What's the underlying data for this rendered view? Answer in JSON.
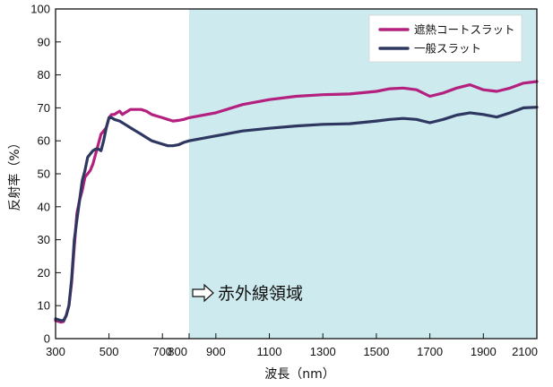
{
  "chart_data": {
    "type": "line",
    "xlabel": "波長（nm）",
    "ylabel": "反射率（%）",
    "ylim": [
      0,
      100
    ],
    "y_ticks": [
      0,
      10,
      20,
      30,
      40,
      50,
      60,
      70,
      80,
      90,
      100
    ],
    "x_ticks_left": [
      300,
      500,
      700,
      800
    ],
    "x_ticks_right": [
      900,
      1100,
      1300,
      1500,
      1700,
      1900,
      2100
    ],
    "x_segments": [
      {
        "from": 300,
        "to": 800
      },
      {
        "from": 800,
        "to": 2100
      }
    ],
    "shaded_region": {
      "from": 800,
      "to": 2100,
      "color": "#cdeaee",
      "label": "赤外線領域"
    },
    "legend": {
      "position": "top-right"
    },
    "grid": false,
    "series": [
      {
        "name": "遮熱コートスラット",
        "color": "#b3207e",
        "points": [
          [
            300,
            5.5
          ],
          [
            320,
            5
          ],
          [
            330,
            5.2
          ],
          [
            340,
            7
          ],
          [
            350,
            10
          ],
          [
            360,
            17
          ],
          [
            370,
            28
          ],
          [
            380,
            38
          ],
          [
            390,
            42
          ],
          [
            400,
            45
          ],
          [
            410,
            49
          ],
          [
            420,
            50
          ],
          [
            430,
            51
          ],
          [
            440,
            53
          ],
          [
            450,
            56
          ],
          [
            460,
            59
          ],
          [
            470,
            62
          ],
          [
            480,
            63
          ],
          [
            490,
            64
          ],
          [
            500,
            67
          ],
          [
            510,
            68
          ],
          [
            520,
            68
          ],
          [
            530,
            68.5
          ],
          [
            540,
            69
          ],
          [
            550,
            68
          ],
          [
            560,
            68.5
          ],
          [
            570,
            69
          ],
          [
            580,
            69.5
          ],
          [
            590,
            69.5
          ],
          [
            600,
            69.5
          ],
          [
            620,
            69.5
          ],
          [
            640,
            69
          ],
          [
            660,
            68
          ],
          [
            680,
            67.5
          ],
          [
            700,
            67
          ],
          [
            720,
            66.5
          ],
          [
            740,
            66
          ],
          [
            760,
            66.2
          ],
          [
            780,
            66.5
          ],
          [
            800,
            67
          ],
          [
            900,
            68.5
          ],
          [
            1000,
            71
          ],
          [
            1100,
            72.5
          ],
          [
            1200,
            73.5
          ],
          [
            1300,
            74
          ],
          [
            1400,
            74.2
          ],
          [
            1500,
            75
          ],
          [
            1550,
            75.8
          ],
          [
            1600,
            76
          ],
          [
            1650,
            75.5
          ],
          [
            1700,
            73.5
          ],
          [
            1750,
            74.5
          ],
          [
            1800,
            76
          ],
          [
            1850,
            77
          ],
          [
            1900,
            75.5
          ],
          [
            1950,
            75
          ],
          [
            2000,
            76
          ],
          [
            2050,
            77.5
          ],
          [
            2100,
            78
          ]
        ]
      },
      {
        "name": "一般スラット",
        "color": "#2e3760",
        "points": [
          [
            300,
            6
          ],
          [
            320,
            5.5
          ],
          [
            330,
            5.5
          ],
          [
            340,
            7
          ],
          [
            350,
            10
          ],
          [
            360,
            18
          ],
          [
            370,
            30
          ],
          [
            380,
            36
          ],
          [
            390,
            42
          ],
          [
            400,
            48
          ],
          [
            410,
            51
          ],
          [
            420,
            55
          ],
          [
            430,
            56
          ],
          [
            440,
            57
          ],
          [
            450,
            57.5
          ],
          [
            460,
            57.5
          ],
          [
            470,
            57
          ],
          [
            480,
            60
          ],
          [
            490,
            64
          ],
          [
            500,
            67
          ],
          [
            510,
            67
          ],
          [
            520,
            66.5
          ],
          [
            540,
            66
          ],
          [
            560,
            65
          ],
          [
            580,
            64
          ],
          [
            600,
            63
          ],
          [
            620,
            62
          ],
          [
            640,
            61
          ],
          [
            660,
            60
          ],
          [
            680,
            59.5
          ],
          [
            700,
            59
          ],
          [
            720,
            58.5
          ],
          [
            740,
            58.5
          ],
          [
            760,
            58.8
          ],
          [
            780,
            59.5
          ],
          [
            800,
            60
          ],
          [
            900,
            61.5
          ],
          [
            1000,
            63
          ],
          [
            1100,
            63.8
          ],
          [
            1200,
            64.5
          ],
          [
            1300,
            65
          ],
          [
            1400,
            65.2
          ],
          [
            1500,
            66
          ],
          [
            1550,
            66.5
          ],
          [
            1600,
            66.8
          ],
          [
            1650,
            66.5
          ],
          [
            1700,
            65.5
          ],
          [
            1750,
            66.5
          ],
          [
            1800,
            67.8
          ],
          [
            1850,
            68.5
          ],
          [
            1900,
            68
          ],
          [
            1950,
            67.2
          ],
          [
            2000,
            68.5
          ],
          [
            2050,
            70
          ],
          [
            2100,
            70.2
          ]
        ]
      }
    ]
  }
}
